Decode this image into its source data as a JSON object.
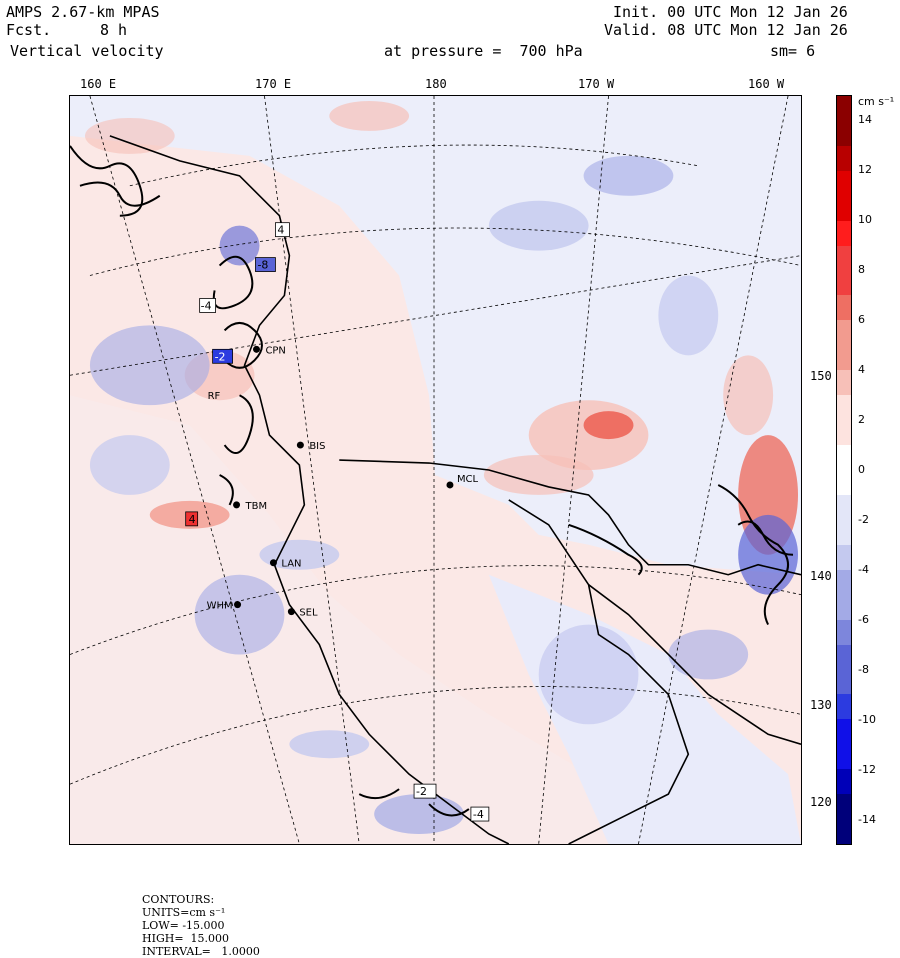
{
  "header": {
    "model": "AMPS 2.67-km MPAS",
    "forecast_label": "Fcst.",
    "forecast_value": "8 h",
    "field": "Vertical velocity",
    "init": "Init. 00 UTC Mon 12 Jan 26",
    "valid": "Valid. 08 UTC Mon 12 Jan 26",
    "level": "at pressure =  700 hPa",
    "smoothing": "sm= 6"
  },
  "map": {
    "lon_labels": [
      "160 E",
      "170 E",
      "180",
      "170 W",
      "160 W"
    ],
    "lat_labels": [
      "150 W",
      "140 W",
      "130 W",
      "120 W"
    ],
    "stations": [
      "CPN",
      "RF",
      "BIS",
      "MCL",
      "TBM",
      "LAN",
      "WHM",
      "SEL"
    ],
    "boxed_values": [
      "4",
      "-8",
      "-4",
      "-2",
      "4",
      "-2",
      "-4"
    ],
    "colors": {
      "positive": [
        "#ffffff",
        "#fde3df",
        "#f7c0b8",
        "#f29b8f",
        "#ee6f63",
        "#f04040",
        "#ff1d1d",
        "#e00000",
        "#b80000",
        "#8b0000"
      ],
      "negative": [
        "#ffffff",
        "#e3e6f8",
        "#c4c9ef",
        "#a3aae6",
        "#7d86dc",
        "#5a64d6",
        "#2c3be0",
        "#1010e8",
        "#0000b8",
        "#00007a"
      ],
      "land_bg": "#fcefee",
      "ocean_bg": "#eceefa"
    }
  },
  "colorbar": {
    "units": "cm s⁻¹",
    "ticks": [
      "14",
      "12",
      "10",
      "8",
      "6",
      "4",
      "2",
      "0",
      "-2",
      "-4",
      "-6",
      "-8",
      "-10",
      "-12",
      "-14"
    ]
  },
  "footer": {
    "contours": "CONTOURS:",
    "units": "UNITS=cm s⁻¹",
    "low": "LOW= -15.000",
    "high": "HIGH=  15.000",
    "interval": "INTERVAL=   1.0000"
  }
}
